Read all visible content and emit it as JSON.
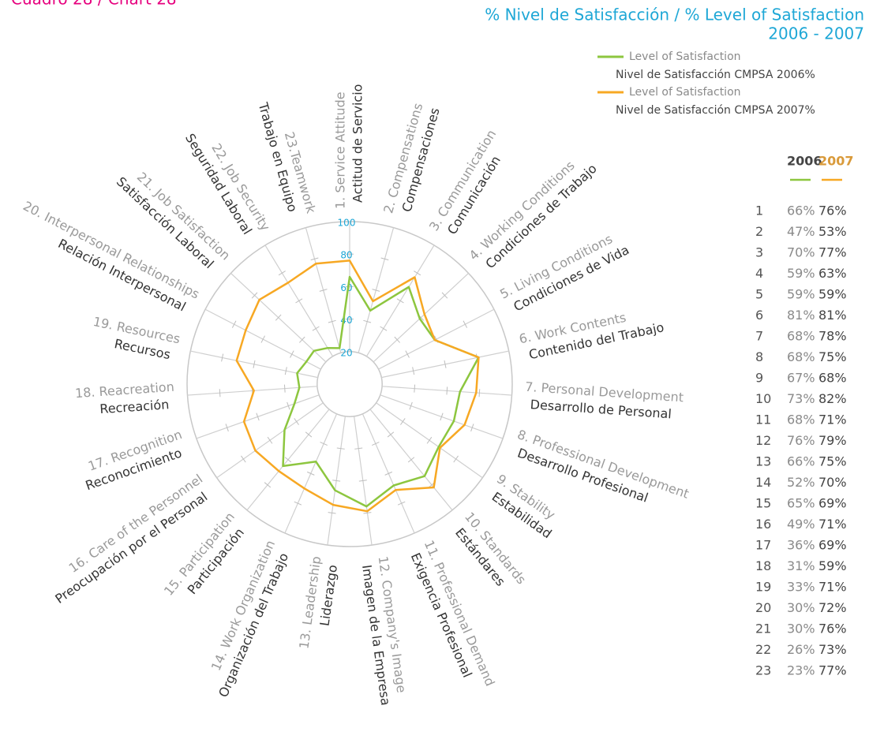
{
  "chart_data": {
    "type": "radar",
    "chart_label": "Cuadro 28 / Chart 28",
    "title": "% Nivel de Satisfacción / % Level of Satisfaction",
    "subtitle": "2006 - 2007",
    "categories": [
      "1. Service Attitude",
      "2. Compensations",
      "3. Communication",
      "4. Working Conditions",
      "5. Living Conditions",
      "6. Work Contents",
      "7. Personal Development",
      "8. Professional Development",
      "9. Stability",
      "10. Standards",
      "11. Professional Demand",
      "12. Company's Image",
      "13. Leadership",
      "14. Work Organization",
      "15. Participation",
      "16. Care of the Personnel",
      "17. Recognition",
      "18. Reacreation",
      "19. Resources",
      "20. Interpersonal Relationships",
      "21. Job Satisfaction",
      "22. Job Security",
      "23.Teamwork"
    ],
    "categories_es": [
      "Actitud de Servicio",
      "Compensaciones",
      "Comunicación",
      "Condiciones de Trabajo",
      "Condiciones de Vida",
      "Contenido del Trabajo",
      "Desarrollo de Personal",
      "Desarrollo Profesional",
      "Estabilidad",
      "Estándares",
      "Exigencia Profesional",
      "Imagen de la Empresa",
      "Liderazgo",
      "Organización del Trabajo",
      "Participación",
      "Preocupación por el Personal",
      "Reconocimiento",
      "Recreación",
      "Recursos",
      "Relación Interpersonal",
      "Satisfacción Laboral",
      "Seguridad Laboral",
      "Trabajo en Equipo"
    ],
    "series": [
      {
        "name": "Level of Satisfaction",
        "name_es": "Nivel de Satisfacción CMPSA 2006%",
        "color": "#8dc63f",
        "values": [
          66,
          47,
          70,
          59,
          59,
          81,
          68,
          68,
          67,
          73,
          68,
          76,
          66,
          52,
          65,
          49,
          36,
          31,
          33,
          30,
          30,
          26,
          23
        ],
        "value_labels": [
          "66%",
          "47%",
          "70%",
          "59%",
          "59%",
          "81%",
          "68%",
          "68%",
          "67%",
          "73%",
          "68%",
          "76%",
          "66%",
          "52%",
          "65%",
          "49%",
          "36%",
          "31%",
          "33%",
          "30%",
          "30%",
          "26%",
          "23%"
        ]
      },
      {
        "name": "Level of Satisfaction",
        "name_es": "Nivel de Satisfacción CMPSA 2007%",
        "color": "#f7a823",
        "values": [
          76,
          53,
          77,
          63,
          59,
          81,
          78,
          75,
          68,
          82,
          71,
          79,
          75,
          70,
          69,
          71,
          69,
          59,
          71,
          72,
          76,
          73,
          77
        ],
        "value_labels": [
          "76%",
          "53%",
          "77%",
          "63%",
          "59%",
          "81%",
          "78%",
          "75%",
          "68%",
          "82%",
          "71%",
          "79%",
          "75%",
          "70%",
          "69%",
          "71%",
          "69%",
          "59%",
          "71%",
          "72%",
          "76%",
          "73%",
          "77%"
        ]
      }
    ],
    "ylim": [
      0,
      100
    ],
    "yticks": [
      20,
      40,
      60,
      80,
      100
    ],
    "table_header": [
      "2006",
      "2007"
    ],
    "table_row_labels": [
      "1",
      "2",
      "3",
      "4",
      "5",
      "6",
      "7",
      "8",
      "9",
      "10",
      "11",
      "12",
      "13",
      "14",
      "15",
      "16",
      "17",
      "18",
      "19",
      "20",
      "21",
      "22",
      "23"
    ]
  }
}
